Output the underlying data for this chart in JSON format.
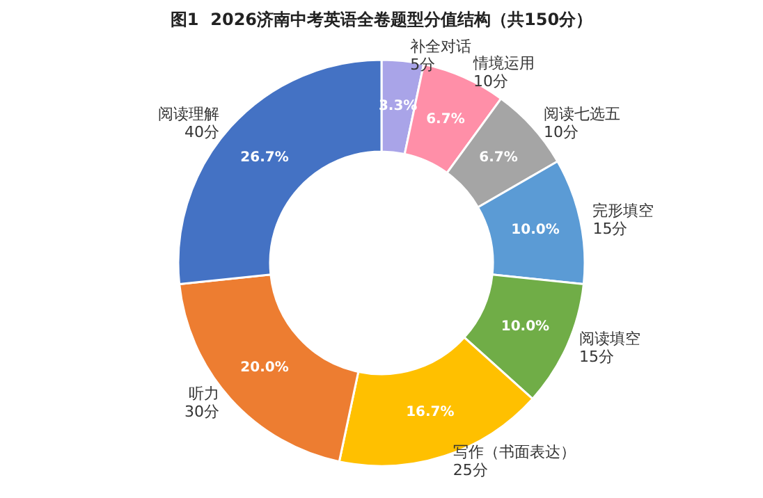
{
  "chart_data": {
    "type": "donut",
    "title": "图1  2026济南中考英语全卷题型分值结构（共150分）",
    "categories": [
      "补全对话",
      "情境运用",
      "阅读七选五",
      "完形填空",
      "阅读填空",
      "写作（书面表达）",
      "听力",
      "阅读理解"
    ],
    "values": [
      5,
      10,
      10,
      15,
      15,
      25,
      30,
      40
    ],
    "colors": [
      "#a9a4e8",
      "#ff8fa8",
      "#a5a5a5",
      "#5b9bd5",
      "#70ad47",
      "#ffc000",
      "#ed7d31",
      "#4472c4"
    ],
    "value_labels": [
      "5分",
      "10分",
      "10分",
      "15分",
      "15分",
      "25分",
      "30分",
      "40分"
    ],
    "annotations": [
      "3.3%",
      "6.7%",
      "6.7%",
      "10.0%",
      "10.0%",
      "16.7%",
      "20.0%",
      "26.7%"
    ],
    "legend": false
  }
}
